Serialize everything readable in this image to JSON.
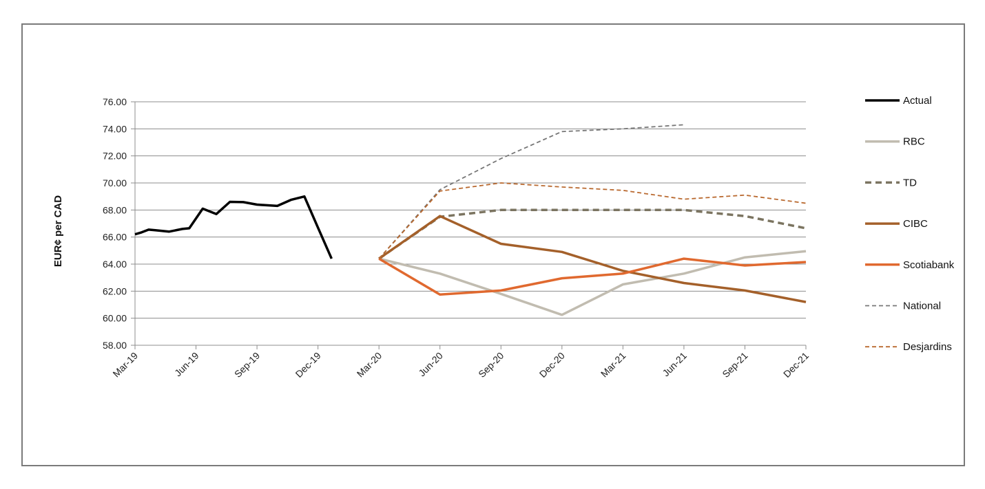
{
  "chart_data": {
    "type": "line",
    "title": "",
    "xlabel": "",
    "ylabel": "EUR¢ per CAD",
    "ylim": [
      58,
      76
    ],
    "yticks": [
      "58.00",
      "60.00",
      "62.00",
      "64.00",
      "66.00",
      "68.00",
      "70.00",
      "72.00",
      "74.00",
      "76.00"
    ],
    "xticks": [
      "Mar-19",
      "Jun-19",
      "Sep-19",
      "Dec-19",
      "Mar-20",
      "Jun-20",
      "Sep-20",
      "Dec-20",
      "Mar-21",
      "Jun-21",
      "Sep-21",
      "Dec-21"
    ],
    "grid": "horizontal",
    "legend_position": "right",
    "series": [
      {
        "name": "Actual",
        "color": "#000000",
        "style": "solid",
        "width": 3.5,
        "points": [
          [
            0,
            66.2
          ],
          [
            0.33,
            66.35
          ],
          [
            0.67,
            66.55
          ],
          [
            1,
            66.5
          ],
          [
            1.67,
            66.4
          ],
          [
            2.33,
            66.6
          ],
          [
            2.67,
            66.65
          ],
          [
            3.33,
            68.1
          ],
          [
            4,
            67.7
          ],
          [
            4.67,
            68.6
          ],
          [
            5.33,
            68.58
          ],
          [
            6,
            68.4
          ],
          [
            7,
            68.3
          ],
          [
            7.67,
            68.75
          ],
          [
            8.33,
            69.0
          ],
          [
            9,
            66.7
          ],
          [
            9.67,
            64.4
          ]
        ]
      },
      {
        "name": "RBC",
        "color": "#c1bcb0",
        "style": "solid",
        "width": 3.5,
        "points": [
          [
            12,
            64.4
          ],
          [
            15,
            63.3
          ],
          [
            18,
            61.8
          ],
          [
            21,
            60.25
          ],
          [
            24,
            62.5
          ],
          [
            27,
            63.3
          ],
          [
            30,
            64.5
          ],
          [
            33,
            64.95
          ]
        ]
      },
      {
        "name": "TD",
        "color": "#7b7460",
        "style": "dashed",
        "width": 3.5,
        "points": [
          [
            12,
            64.4
          ],
          [
            15,
            67.5
          ],
          [
            18,
            68.0
          ],
          [
            21,
            68.0
          ],
          [
            24,
            68.0
          ],
          [
            27,
            68.0
          ],
          [
            30,
            67.55
          ],
          [
            33,
            66.65
          ]
        ]
      },
      {
        "name": "CIBC",
        "color": "#a4602a",
        "style": "solid",
        "width": 3.5,
        "points": [
          [
            12,
            64.4
          ],
          [
            15,
            67.55
          ],
          [
            18,
            65.5
          ],
          [
            21,
            64.9
          ],
          [
            24,
            63.5
          ],
          [
            27,
            62.6
          ],
          [
            30,
            62.05
          ],
          [
            33,
            61.2
          ]
        ]
      },
      {
        "name": "Scotiabank",
        "color": "#e0692f",
        "style": "solid",
        "width": 3.5,
        "points": [
          [
            12,
            64.4
          ],
          [
            15,
            61.75
          ],
          [
            18,
            62.05
          ],
          [
            21,
            62.95
          ],
          [
            24,
            63.3
          ],
          [
            27,
            64.4
          ],
          [
            30,
            63.9
          ],
          [
            33,
            64.15
          ]
        ]
      },
      {
        "name": "National",
        "color": "#777777",
        "style": "dashed-thin",
        "width": 1.8,
        "points": [
          [
            12,
            64.4
          ],
          [
            15,
            69.5
          ],
          [
            18,
            71.8
          ],
          [
            21,
            73.8
          ],
          [
            24,
            74.0
          ],
          [
            27,
            74.3
          ]
        ]
      },
      {
        "name": "Desjardins",
        "color": "#b9692f",
        "style": "dashed-thin",
        "width": 1.8,
        "points": [
          [
            12,
            64.4
          ],
          [
            15,
            69.4
          ],
          [
            18,
            70.0
          ],
          [
            21,
            69.7
          ],
          [
            24,
            69.45
          ],
          [
            27,
            68.8
          ],
          [
            30,
            69.1
          ],
          [
            33,
            68.5
          ]
        ]
      }
    ]
  }
}
